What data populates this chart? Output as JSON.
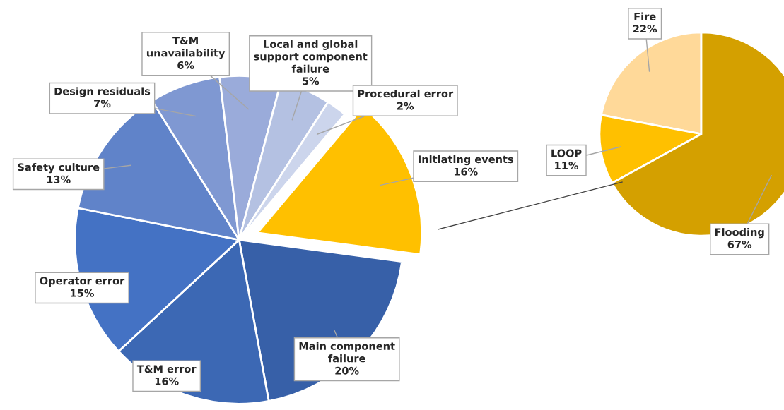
{
  "chart_data": [
    {
      "type": "pie",
      "categories": [
        "Initiating events",
        "Main component failure",
        "T&M error",
        "Operator error",
        "Safety culture",
        "Design residuals",
        "T&M unavailability",
        "Local and global support component failure",
        "Procedural error"
      ],
      "values": [
        16,
        20,
        16,
        15,
        13,
        7,
        6,
        5,
        2
      ],
      "colors": [
        "#ffc000",
        "#3760a8",
        "#3c68b4",
        "#4472c4",
        "#6083c9",
        "#7f98d2",
        "#9aabda",
        "#b4c1e2",
        "#ccd5ec"
      ],
      "value_labels": [
        "16%",
        "20%",
        "16%",
        "15%",
        "13%",
        "7%",
        "6%",
        "5%",
        "2%"
      ],
      "legend": false
    },
    {
      "type": "pie",
      "categories": [
        "Fire",
        "LOOP",
        "Flooding"
      ],
      "values": [
        22,
        11,
        67
      ],
      "colors": [
        "#ffd999",
        "#ffc000",
        "#d4a000"
      ],
      "value_labels": [
        "22%",
        "11%",
        "67%"
      ],
      "legend": false
    }
  ]
}
